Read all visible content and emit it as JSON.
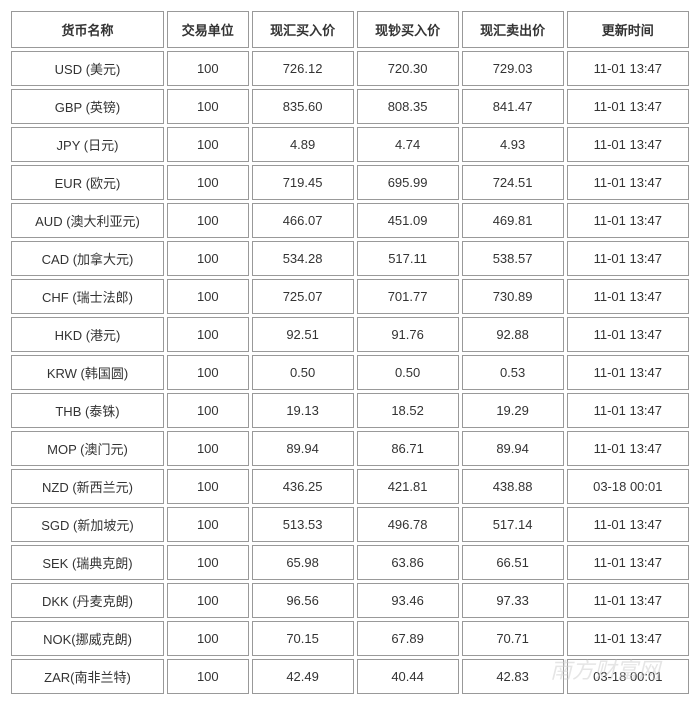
{
  "table": {
    "columns": [
      "货币名称",
      "交易单位",
      "现汇买入价",
      "现钞买入价",
      "现汇卖出价",
      "更新时间"
    ],
    "rows": [
      [
        "USD (美元)",
        "100",
        "726.12",
        "720.30",
        "729.03",
        "11-01 13:47"
      ],
      [
        "GBP (英镑)",
        "100",
        "835.60",
        "808.35",
        "841.47",
        "11-01 13:47"
      ],
      [
        "JPY (日元)",
        "100",
        "4.89",
        "4.74",
        "4.93",
        "11-01 13:47"
      ],
      [
        "EUR (欧元)",
        "100",
        "719.45",
        "695.99",
        "724.51",
        "11-01 13:47"
      ],
      [
        "AUD (澳大利亚元)",
        "100",
        "466.07",
        "451.09",
        "469.81",
        "11-01 13:47"
      ],
      [
        "CAD (加拿大元)",
        "100",
        "534.28",
        "517.11",
        "538.57",
        "11-01 13:47"
      ],
      [
        "CHF (瑞士法郎)",
        "100",
        "725.07",
        "701.77",
        "730.89",
        "11-01 13:47"
      ],
      [
        "HKD (港元)",
        "100",
        "92.51",
        "91.76",
        "92.88",
        "11-01 13:47"
      ],
      [
        "KRW (韩国圆)",
        "100",
        "0.50",
        "0.50",
        "0.53",
        "11-01 13:47"
      ],
      [
        "THB (泰铢)",
        "100",
        "19.13",
        "18.52",
        "19.29",
        "11-01 13:47"
      ],
      [
        "MOP (澳门元)",
        "100",
        "89.94",
        "86.71",
        "89.94",
        "11-01 13:47"
      ],
      [
        "NZD (新西兰元)",
        "100",
        "436.25",
        "421.81",
        "438.88",
        "03-18 00:01"
      ],
      [
        "SGD (新加坡元)",
        "100",
        "513.53",
        "496.78",
        "517.14",
        "11-01 13:47"
      ],
      [
        "SEK (瑞典克朗)",
        "100",
        "65.98",
        "63.86",
        "66.51",
        "11-01 13:47"
      ],
      [
        "DKK (丹麦克朗)",
        "100",
        "96.56",
        "93.46",
        "97.33",
        "11-01 13:47"
      ],
      [
        "NOK(挪威克朗)",
        "100",
        "70.15",
        "67.89",
        "70.71",
        "11-01 13:47"
      ],
      [
        "ZAR(南非兰特)",
        "100",
        "42.49",
        "40.44",
        "42.83",
        "03-18 00:01"
      ]
    ],
    "col_classes": [
      "col-name",
      "col-unit",
      "col-rate",
      "col-rate",
      "col-rate",
      "col-time"
    ],
    "border_color": "#999999",
    "text_color": "#333333",
    "background_color": "#ffffff",
    "font_size": 13,
    "cell_padding": 7,
    "border_spacing": 3
  },
  "watermark": {
    "text": "南方财富网",
    "subtext": "southmoney.com",
    "color": "#cccccc",
    "opacity": 0.5
  }
}
